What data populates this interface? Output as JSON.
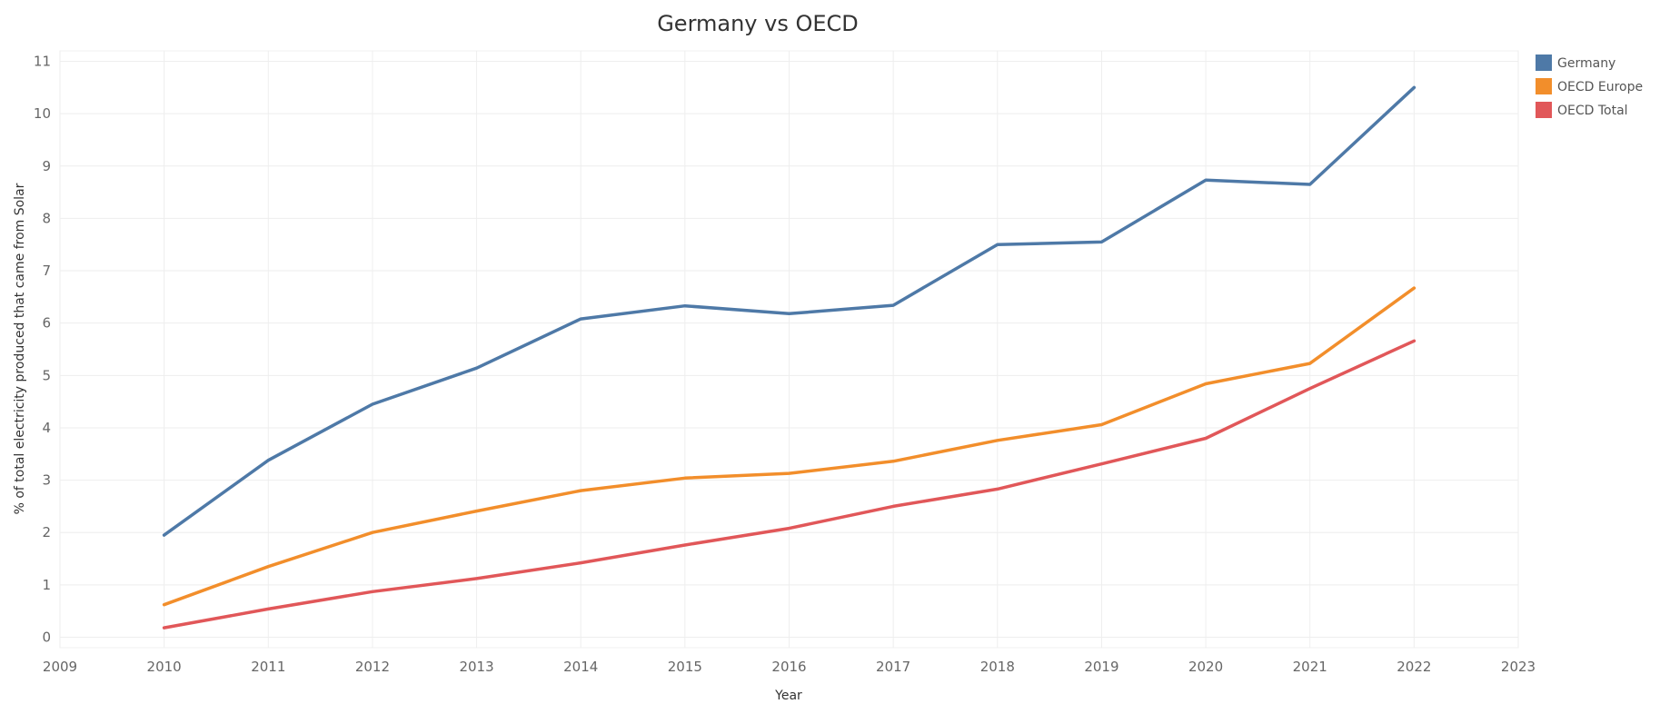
{
  "chart_data": {
    "type": "line",
    "title": "Germany vs OECD",
    "xlabel": "Year",
    "ylabel": "% of total electricity produced that came from Solar",
    "x": [
      2010,
      2011,
      2012,
      2013,
      2014,
      2015,
      2016,
      2017,
      2018,
      2019,
      2020,
      2021,
      2022
    ],
    "xlim": [
      2009,
      2023
    ],
    "x_ticks": [
      2009,
      2010,
      2011,
      2012,
      2013,
      2014,
      2015,
      2016,
      2017,
      2018,
      2019,
      2020,
      2021,
      2022,
      2023
    ],
    "ylim": [
      -0.2,
      11.2
    ],
    "y_ticks": [
      0,
      1,
      2,
      3,
      4,
      5,
      6,
      7,
      8,
      9,
      10,
      11
    ],
    "grid": true,
    "legend_position": "top-right",
    "series": [
      {
        "name": "Germany",
        "color": "#4e79a7",
        "values": [
          1.95,
          3.38,
          4.45,
          5.14,
          6.08,
          6.33,
          6.18,
          6.34,
          7.5,
          7.55,
          8.73,
          8.65,
          10.5
        ]
      },
      {
        "name": "OECD Europe",
        "color": "#f28e2b",
        "values": [
          0.62,
          1.35,
          2.0,
          2.41,
          2.8,
          3.04,
          3.13,
          3.36,
          3.76,
          4.06,
          4.84,
          5.23,
          6.67
        ]
      },
      {
        "name": "OECD Total",
        "color": "#e15759",
        "values": [
          0.18,
          0.54,
          0.87,
          1.12,
          1.42,
          1.76,
          2.08,
          2.5,
          2.83,
          3.31,
          3.8,
          4.75,
          5.66
        ]
      }
    ]
  }
}
